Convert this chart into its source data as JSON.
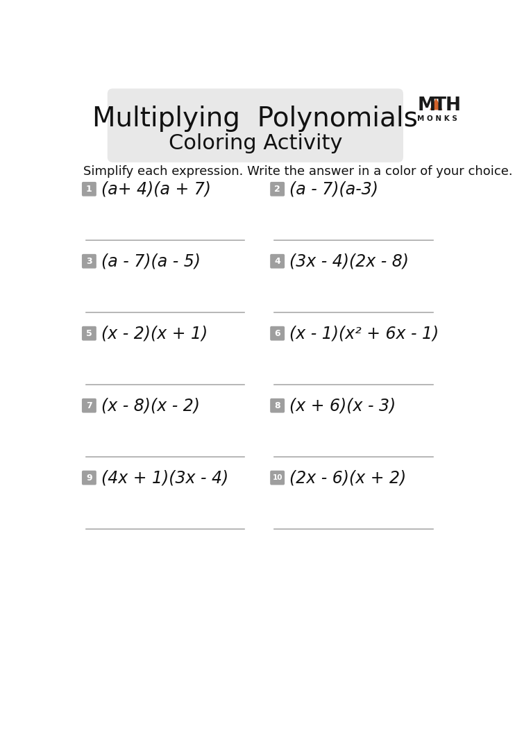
{
  "title_line1": "Multiplying  Polynomials",
  "title_line2": "Coloring Activity",
  "subtitle": "Simplify each expression. Write the answer in a color of your choice.",
  "background_color": "#ffffff",
  "header_box_color": "#e8e8e8",
  "number_box_color": "#9e9e9e",
  "problems": [
    {
      "num": "1",
      "expr": "(a+ 4)(a + 7)",
      "col": 0,
      "row": 0
    },
    {
      "num": "2",
      "expr": "(a - 7)(a-3)",
      "col": 1,
      "row": 0
    },
    {
      "num": "3",
      "expr": "(a - 7)(a - 5)",
      "col": 0,
      "row": 1
    },
    {
      "num": "4",
      "expr": "(3x - 4)(2x - 8)",
      "col": 1,
      "row": 1
    },
    {
      "num": "5",
      "expr": "(x - 2)(x + 1)",
      "col": 0,
      "row": 2
    },
    {
      "num": "6",
      "expr": "(x - 1)(x² + 6x - 1)",
      "col": 1,
      "row": 2
    },
    {
      "num": "7",
      "expr": "(x - 8)(x - 2)",
      "col": 0,
      "row": 3
    },
    {
      "num": "8",
      "expr": "(x + 6)(x - 3)",
      "col": 1,
      "row": 3
    },
    {
      "num": "9",
      "expr": "(4x + 1)(3x - 4)",
      "col": 0,
      "row": 4
    },
    {
      "num": "10",
      "expr": "(2x - 6)(x + 2)",
      "col": 1,
      "row": 4
    }
  ],
  "logo_triangle_color": "#d2622a",
  "logo_text_color": "#1a1a1a"
}
